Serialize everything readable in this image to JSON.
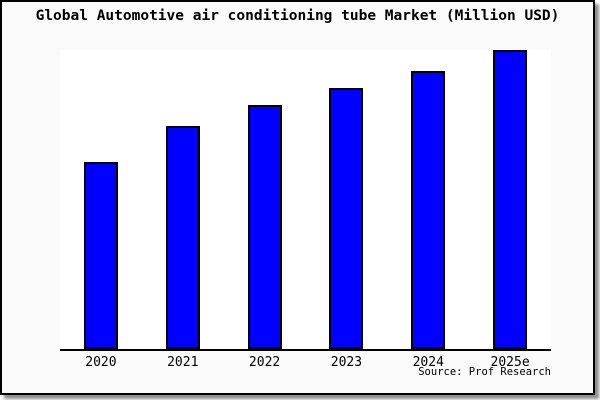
{
  "window": {
    "title": "Global Automotive air conditioning tube Market (Million USD)"
  },
  "colors": {
    "bar_fill": "#0000ff",
    "bar_border": "#000000",
    "frame_bg": "#fafafa",
    "frame_border": "#000000",
    "plot_bg": "#ffffff",
    "text": "#000000"
  },
  "chart_data": {
    "type": "bar",
    "title": "Global Automotive air conditioning tube Market (Million USD)",
    "categories": [
      "2020",
      "2021",
      "2022",
      "2023",
      "2024",
      "2025e"
    ],
    "values": [
      62.6,
      74.6,
      81.6,
      87.3,
      93.0,
      100
    ],
    "value_note": "y-axis unlabeled; values are relative units estimated from bar heights (2025e = 100)",
    "xlabel": "",
    "ylabel": "",
    "ylim": [
      0,
      100
    ],
    "grid": false,
    "legend": null,
    "source": "Source: Prof Research"
  }
}
